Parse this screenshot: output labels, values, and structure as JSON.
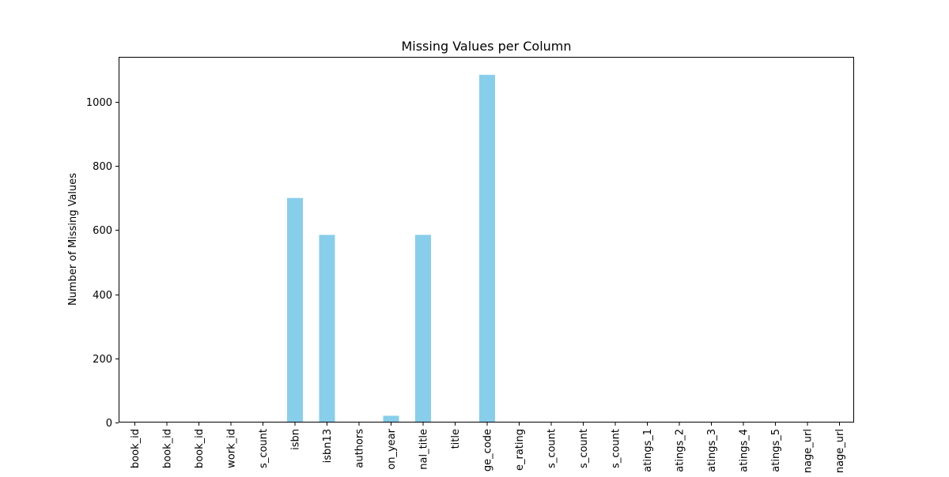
{
  "chart_data": {
    "type": "bar",
    "title": "Missing Values per Column",
    "xlabel": "",
    "ylabel": "Number of Missing Values",
    "ylim": [
      0,
      1140
    ],
    "yticks": [
      0,
      200,
      400,
      600,
      800,
      1000
    ],
    "grid": false,
    "bar_color": "#87ceeb",
    "categories": [
      "book_id",
      "book_id",
      "book_id",
      "work_id",
      "s_count",
      "isbn",
      "isbn13",
      "authors",
      "on_year",
      "nal_title",
      "title",
      "ge_code",
      "e_rating",
      "s_count",
      "s_count",
      "s_count",
      "atings_1",
      "atings_2",
      "atings_3",
      "atings_4",
      "atings_5",
      "nage_url",
      "nage_url"
    ],
    "values": [
      0,
      0,
      0,
      0,
      0,
      700,
      585,
      0,
      21,
      585,
      0,
      1084,
      0,
      0,
      0,
      0,
      0,
      0,
      0,
      0,
      0,
      0,
      0
    ]
  }
}
